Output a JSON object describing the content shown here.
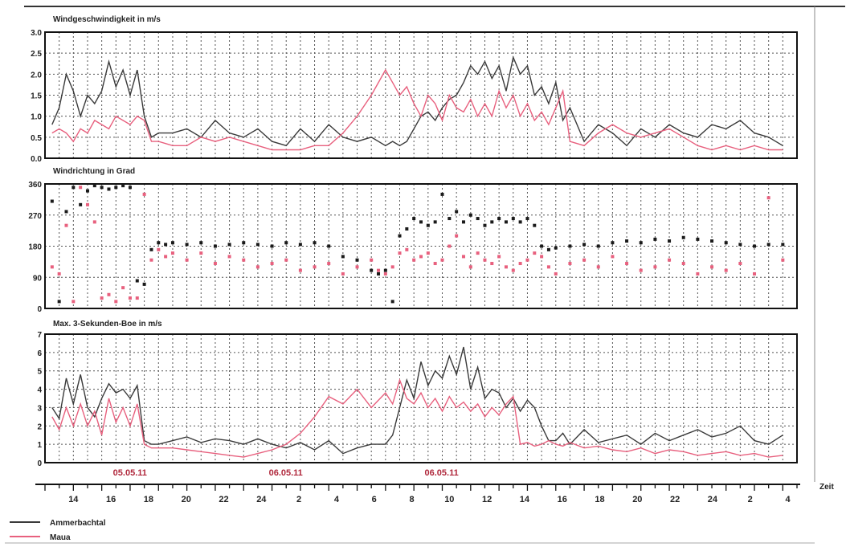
{
  "colors": {
    "ammerbachtal": "#3a3a3a",
    "maua": "#e8607e",
    "date_label": "#b0283c",
    "grid": "#555555"
  },
  "x_axis": {
    "title": "Zeit",
    "tick_labels": [
      "14",
      "16",
      "18",
      "20",
      "22",
      "24",
      "2",
      "4",
      "6",
      "8",
      "10",
      "12",
      "14",
      "16",
      "18",
      "20",
      "22",
      "24",
      "2",
      "4"
    ],
    "date_labels": [
      {
        "text": "05.05.11",
        "at_hour": 18
      },
      {
        "text": "06.05.11",
        "at_hour": 30
      },
      {
        "text": "06.05.11",
        "at_hour": 42
      }
    ]
  },
  "legend": [
    {
      "name": "Ammerbachtal",
      "color": "#3a3a3a"
    },
    {
      "name": "Maua",
      "color": "#e8607e"
    }
  ],
  "chart_data": [
    {
      "type": "line",
      "title": "Windgeschwindigkeit  in m/s",
      "ylim": [
        0,
        3.0
      ],
      "yticks": [
        "0.0",
        "0.5",
        "1.0",
        "1.5",
        "2.0",
        "2.5",
        "3.0"
      ],
      "grid": true,
      "x_unit": "hours since 12:00 on 05.05.11 (axis labels show hour of day)",
      "series": [
        {
          "name": "Ammerbachtal",
          "color": "#3a3a3a",
          "x": [
            0.5,
            1,
            1.5,
            2,
            2.5,
            3,
            3.5,
            4,
            4.5,
            5,
            5.5,
            6,
            6.5,
            7,
            7.5,
            8,
            9,
            10,
            11,
            12,
            13,
            14,
            15,
            16,
            17,
            18,
            19,
            20,
            21,
            22,
            23,
            24,
            24.5,
            25,
            25.5,
            26,
            26.5,
            27,
            27.5,
            28,
            28.5,
            29,
            29.5,
            30,
            30.5,
            31,
            31.5,
            32,
            32.5,
            33,
            33.5,
            34,
            34.5,
            35,
            35.5,
            36,
            36.5,
            37,
            38,
            39,
            40,
            41,
            42,
            43,
            44,
            45,
            46,
            47,
            48,
            49,
            50,
            51,
            52
          ],
          "y": [
            0.8,
            1.2,
            2.0,
            1.6,
            1.0,
            1.5,
            1.3,
            1.6,
            2.3,
            1.7,
            2.1,
            1.5,
            2.1,
            1.0,
            0.5,
            0.6,
            0.6,
            0.7,
            0.5,
            0.9,
            0.6,
            0.5,
            0.7,
            0.4,
            0.3,
            0.7,
            0.4,
            0.8,
            0.5,
            0.4,
            0.5,
            0.3,
            0.4,
            0.3,
            0.4,
            0.7,
            1.0,
            1.1,
            0.9,
            1.2,
            1.4,
            1.5,
            1.8,
            2.2,
            2.0,
            2.3,
            1.9,
            2.2,
            1.6,
            2.4,
            2.0,
            2.2,
            1.5,
            1.7,
            1.3,
            1.8,
            0.9,
            1.2,
            0.4,
            0.8,
            0.6,
            0.3,
            0.7,
            0.5,
            0.8,
            0.6,
            0.5,
            0.8,
            0.7,
            0.9,
            0.6,
            0.5,
            0.3
          ]
        },
        {
          "name": "Maua",
          "color": "#e8607e",
          "x": [
            0.5,
            1,
            1.5,
            2,
            2.5,
            3,
            3.5,
            4,
            4.5,
            5,
            5.5,
            6,
            6.5,
            7,
            7.5,
            8,
            9,
            10,
            11,
            12,
            13,
            14,
            15,
            16,
            17,
            18,
            19,
            20,
            21,
            22,
            23,
            24,
            24.5,
            25,
            25.5,
            26,
            26.5,
            27,
            27.5,
            28,
            28.5,
            29,
            29.5,
            30,
            30.5,
            31,
            31.5,
            32,
            32.5,
            33,
            33.5,
            34,
            34.5,
            35,
            35.5,
            36,
            36.5,
            37,
            38,
            39,
            40,
            41,
            42,
            43,
            44,
            45,
            46,
            47,
            48,
            49,
            50,
            51,
            52
          ],
          "y": [
            0.6,
            0.7,
            0.6,
            0.4,
            0.7,
            0.6,
            0.9,
            0.8,
            0.7,
            1.0,
            0.9,
            0.8,
            1.0,
            0.9,
            0.4,
            0.4,
            0.3,
            0.3,
            0.5,
            0.4,
            0.5,
            0.4,
            0.3,
            0.2,
            0.2,
            0.2,
            0.3,
            0.3,
            0.6,
            1.0,
            1.5,
            2.1,
            1.8,
            1.5,
            1.7,
            1.3,
            1.0,
            1.5,
            1.3,
            0.9,
            1.5,
            1.2,
            1.1,
            1.4,
            1.0,
            1.3,
            1.0,
            1.6,
            1.2,
            1.5,
            1.0,
            1.3,
            0.9,
            1.1,
            0.8,
            1.2,
            1.6,
            0.4,
            0.3,
            0.6,
            0.8,
            0.6,
            0.5,
            0.6,
            0.7,
            0.5,
            0.3,
            0.2,
            0.3,
            0.2,
            0.3,
            0.2,
            0.2
          ]
        }
      ]
    },
    {
      "type": "scatter",
      "title": "Windrichtung in Grad",
      "ylim": [
        0,
        360
      ],
      "yticks": [
        "0",
        "90",
        "180",
        "270",
        "360"
      ],
      "grid": true,
      "x_unit": "hours since 12:00 on 05.05.11 (axis labels show hour of day)",
      "series": [
        {
          "name": "Ammerbachtal",
          "color": "#1a1a1a",
          "x": [
            0.5,
            1,
            1.5,
            2,
            2.5,
            3,
            3.5,
            4,
            4.5,
            5,
            5.5,
            6,
            6.5,
            7,
            7.5,
            8,
            8.5,
            9,
            10,
            11,
            12,
            13,
            14,
            15,
            16,
            17,
            18,
            19,
            20,
            21,
            22,
            23,
            23.5,
            24,
            24.5,
            25,
            25.5,
            26,
            26.5,
            27,
            27.5,
            28,
            28.5,
            29,
            29.5,
            30,
            30.5,
            31,
            31.5,
            32,
            32.5,
            33,
            33.5,
            34,
            34.5,
            35,
            35.5,
            36,
            37,
            38,
            39,
            40,
            41,
            42,
            43,
            44,
            45,
            46,
            47,
            48,
            49,
            50,
            51,
            52
          ],
          "y": [
            310,
            20,
            280,
            350,
            300,
            340,
            355,
            350,
            345,
            350,
            355,
            350,
            80,
            70,
            170,
            190,
            185,
            190,
            185,
            190,
            180,
            185,
            190,
            185,
            180,
            190,
            185,
            190,
            180,
            150,
            140,
            110,
            100,
            110,
            20,
            210,
            230,
            260,
            250,
            240,
            250,
            330,
            260,
            280,
            250,
            270,
            260,
            240,
            250,
            260,
            250,
            260,
            250,
            260,
            240,
            180,
            170,
            175,
            180,
            185,
            180,
            190,
            195,
            190,
            200,
            195,
            205,
            200,
            195,
            190,
            185,
            180,
            185,
            185
          ]
        },
        {
          "name": "Maua",
          "color": "#e8607e",
          "x": [
            0.5,
            1,
            1.5,
            2,
            2.5,
            3,
            3.5,
            4,
            4.5,
            5,
            5.5,
            6,
            6.5,
            7,
            7.5,
            8,
            8.5,
            9,
            10,
            11,
            12,
            13,
            14,
            15,
            16,
            17,
            18,
            19,
            20,
            21,
            22,
            23,
            23.5,
            24,
            24.5,
            25,
            25.5,
            26,
            26.5,
            27,
            27.5,
            28,
            28.5,
            29,
            29.5,
            30,
            30.5,
            31,
            31.5,
            32,
            32.5,
            33,
            33.5,
            34,
            34.5,
            35,
            35.5,
            36,
            37,
            38,
            39,
            40,
            41,
            42,
            43,
            44,
            45,
            46,
            47,
            48,
            49,
            50,
            51,
            52
          ],
          "y": [
            120,
            100,
            240,
            20,
            350,
            300,
            250,
            30,
            40,
            20,
            60,
            30,
            30,
            330,
            140,
            170,
            150,
            160,
            140,
            160,
            130,
            150,
            140,
            120,
            130,
            140,
            110,
            120,
            130,
            100,
            120,
            140,
            110,
            100,
            120,
            160,
            170,
            140,
            150,
            160,
            130,
            140,
            180,
            210,
            150,
            120,
            160,
            140,
            130,
            150,
            120,
            110,
            130,
            140,
            160,
            150,
            120,
            100,
            130,
            140,
            120,
            150,
            130,
            110,
            120,
            140,
            130,
            100,
            120,
            110,
            130,
            100,
            320,
            140
          ]
        }
      ]
    },
    {
      "type": "line",
      "title": "Max. 3-Sekunden-Boe in m/s",
      "ylim": [
        0,
        7
      ],
      "yticks": [
        "0",
        "1",
        "2",
        "3",
        "4",
        "5",
        "6",
        "7"
      ],
      "grid": true,
      "x_unit": "hours since 12:00 on 05.05.11 (axis labels show hour of day)",
      "series": [
        {
          "name": "Ammerbachtal",
          "color": "#3a3a3a",
          "x": [
            0.5,
            1,
            1.5,
            2,
            2.5,
            3,
            3.5,
            4,
            4.5,
            5,
            5.5,
            6,
            6.5,
            7,
            7.5,
            8,
            9,
            10,
            11,
            12,
            13,
            14,
            15,
            16,
            17,
            18,
            19,
            20,
            21,
            22,
            23,
            24,
            24.5,
            25,
            25.5,
            26,
            26.5,
            27,
            27.5,
            28,
            28.5,
            29,
            29.5,
            30,
            30.5,
            31,
            31.5,
            32,
            32.5,
            33,
            33.5,
            34,
            34.5,
            35,
            35.5,
            36,
            36.5,
            37,
            38,
            39,
            40,
            41,
            42,
            43,
            44,
            45,
            46,
            47,
            48,
            49,
            50,
            51,
            52
          ],
          "y": [
            3.0,
            2.4,
            4.6,
            3.2,
            4.8,
            3.0,
            2.5,
            3.5,
            4.3,
            3.8,
            4.0,
            3.5,
            4.2,
            1.2,
            1.0,
            1.0,
            1.2,
            1.4,
            1.1,
            1.3,
            1.2,
            1.0,
            1.3,
            1.0,
            0.8,
            1.1,
            0.7,
            1.2,
            0.5,
            0.8,
            1.0,
            1.0,
            1.5,
            3.0,
            4.5,
            3.5,
            5.5,
            4.2,
            5.0,
            4.6,
            5.8,
            4.8,
            6.3,
            4.0,
            5.2,
            3.5,
            4.0,
            3.8,
            3.0,
            3.5,
            2.8,
            3.4,
            3.0,
            2.0,
            1.2,
            1.2,
            1.6,
            1.0,
            1.8,
            1.1,
            1.3,
            1.5,
            1.0,
            1.6,
            1.2,
            1.5,
            1.8,
            1.4,
            1.6,
            2.0,
            1.2,
            1.0,
            1.5
          ]
        },
        {
          "name": "Maua",
          "color": "#e8607e",
          "x": [
            0.5,
            1,
            1.5,
            2,
            2.5,
            3,
            3.5,
            4,
            4.5,
            5,
            5.5,
            6,
            6.5,
            7,
            7.5,
            8,
            9,
            10,
            11,
            12,
            13,
            14,
            15,
            16,
            17,
            18,
            19,
            20,
            21,
            22,
            23,
            24,
            24.5,
            25,
            25.5,
            26,
            26.5,
            27,
            27.5,
            28,
            28.5,
            29,
            29.5,
            30,
            30.5,
            31,
            31.5,
            32,
            32.5,
            33,
            33.5,
            34,
            34.5,
            35,
            35.5,
            36,
            36.5,
            37,
            38,
            39,
            40,
            41,
            42,
            43,
            44,
            45,
            46,
            47,
            48,
            49,
            50,
            51,
            52
          ],
          "y": [
            2.5,
            1.8,
            3.0,
            2.0,
            3.2,
            2.0,
            2.8,
            1.5,
            3.5,
            2.2,
            3.0,
            2.0,
            3.2,
            1.0,
            0.8,
            0.8,
            0.8,
            0.7,
            0.6,
            0.5,
            0.4,
            0.3,
            0.5,
            0.7,
            1.0,
            1.6,
            2.5,
            3.6,
            3.2,
            4.0,
            3.0,
            3.8,
            3.2,
            4.5,
            3.5,
            3.2,
            3.8,
            3.0,
            3.5,
            2.8,
            3.6,
            3.0,
            3.3,
            2.8,
            3.2,
            2.5,
            3.0,
            2.6,
            3.2,
            3.6,
            1.0,
            1.1,
            0.9,
            1.0,
            1.2,
            1.0,
            0.9,
            1.1,
            0.8,
            0.9,
            0.7,
            0.6,
            0.8,
            0.5,
            0.7,
            0.6,
            0.4,
            0.5,
            0.6,
            0.4,
            0.5,
            0.3,
            0.4
          ]
        }
      ]
    }
  ]
}
